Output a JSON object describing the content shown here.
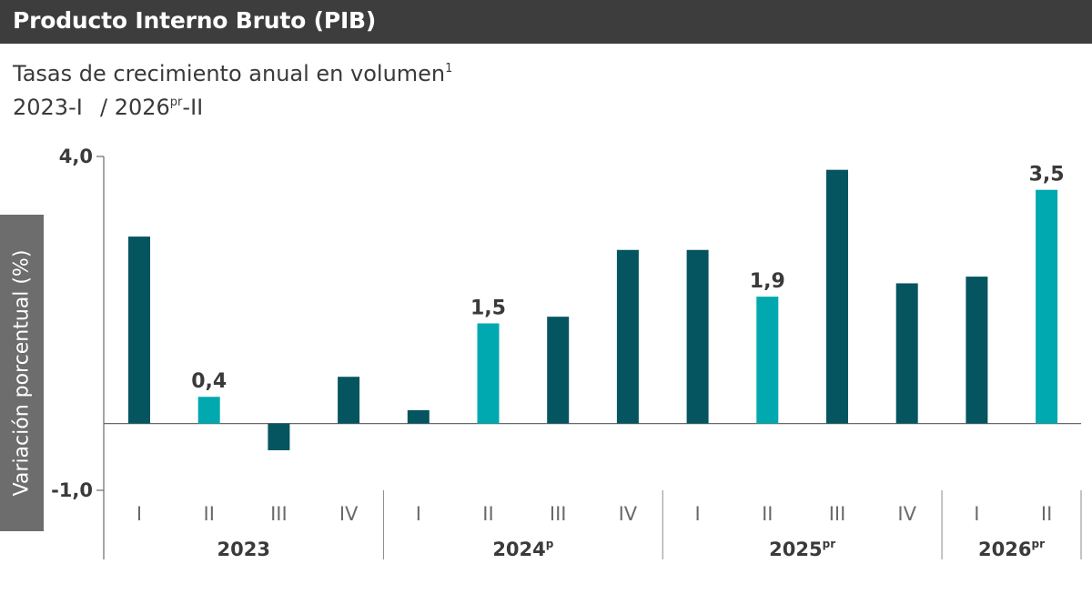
{
  "header": {
    "title": "Producto Interno Bruto (PIB)"
  },
  "subtitle": {
    "line1": "Tasas de crecimiento anual en volumen",
    "line1_sup": "1",
    "period_start": "2023-I",
    "period_end_prefix": "/ 2026",
    "period_end_sup": "pr",
    "period_end_suffix": "-II"
  },
  "colors": {
    "dark_bar": "#055560",
    "highlight_bar": "#00a8b0",
    "header_bg": "#3d3d3d",
    "ylabel_bg": "#6d6d6d"
  },
  "chart_data": {
    "type": "bar",
    "ylabel": "Variación porcentual  (%)",
    "ylim": [
      -1.0,
      4.0
    ],
    "ytick_labels": [
      "4,0",
      "-1,0"
    ],
    "yticks": [
      4.0,
      -1.0
    ],
    "grid": false,
    "categories": [
      "I",
      "II",
      "III",
      "IV",
      "I",
      "II",
      "III",
      "IV",
      "I",
      "II",
      "III",
      "IV",
      "I",
      "II"
    ],
    "years": [
      {
        "label": "2023",
        "sup": "",
        "quarters": 4
      },
      {
        "label": "2024",
        "sup": "p",
        "quarters": 4
      },
      {
        "label": "2025",
        "sup": "pr",
        "quarters": 4
      },
      {
        "label": "2026",
        "sup": "pr",
        "quarters": 2
      }
    ],
    "series": [
      {
        "values": [
          2.8,
          0.4,
          -0.4,
          0.7,
          0.2,
          1.5,
          1.6,
          2.6,
          2.6,
          1.9,
          3.8,
          2.1,
          2.2,
          3.5
        ]
      }
    ],
    "highlighted": [
      false,
      true,
      false,
      false,
      false,
      true,
      false,
      false,
      false,
      true,
      false,
      false,
      false,
      true
    ],
    "data_labels": [
      "",
      "0,4",
      "",
      "",
      "",
      "1,5",
      "",
      "",
      "",
      "1,9",
      "",
      "",
      "",
      "3,5"
    ]
  }
}
